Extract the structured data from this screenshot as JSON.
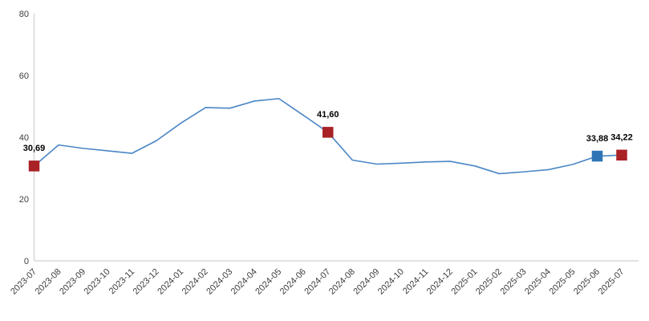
{
  "chart_data": {
    "type": "line",
    "title": "",
    "xlabel": "",
    "ylabel": "",
    "categories": [
      "2023-07",
      "2023-08",
      "2023-09",
      "2023-10",
      "2023-11",
      "2023-12",
      "2024-01",
      "2024-02",
      "2024-03",
      "2024-04",
      "2024-05",
      "2024-06",
      "2024-07",
      "2024-08",
      "2024-09",
      "2024-10",
      "2024-11",
      "2024-12",
      "2025-01",
      "2025-02",
      "2025-03",
      "2025-04",
      "2025-05",
      "2025-06",
      "2025-07"
    ],
    "values": [
      30.69,
      37.5,
      36.4,
      35.6,
      34.8,
      38.9,
      44.6,
      49.6,
      49.4,
      51.7,
      52.5,
      47.1,
      41.6,
      32.6,
      31.3,
      31.6,
      32.0,
      32.2,
      30.7,
      28.2,
      28.8,
      29.5,
      31.2,
      33.88,
      34.22
    ],
    "labeled_points": [
      {
        "index": 0,
        "label": "30,69",
        "marker_color": "#a92226"
      },
      {
        "index": 12,
        "label": "41,60",
        "marker_color": "#a92226"
      },
      {
        "index": 23,
        "label": "33,88",
        "marker_color": "#2e75b6"
      },
      {
        "index": 24,
        "label": "34,22",
        "marker_color": "#a92226"
      }
    ],
    "ylim": [
      0,
      80
    ],
    "yticks": [
      0,
      20,
      40,
      60,
      80
    ],
    "grid": false,
    "legend": false,
    "xtick_rotation": -45,
    "line_color": "#4a86c5",
    "axis_color": "#d9d9d9",
    "tick_label_color": "#3d3d3d",
    "data_label_color": "#000000"
  }
}
